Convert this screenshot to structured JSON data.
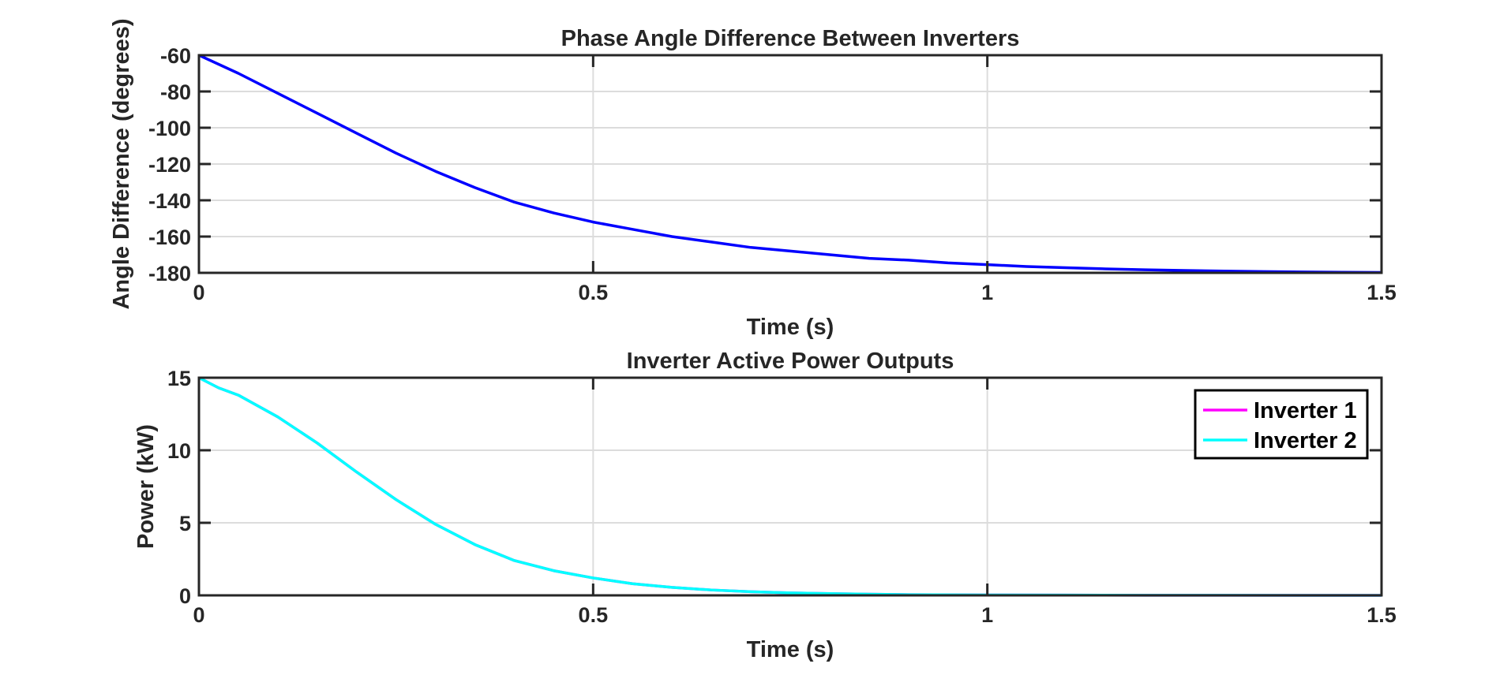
{
  "chart_data": [
    {
      "type": "line",
      "title": "Phase Angle Difference Between Inverters",
      "xlabel": "Time (s)",
      "ylabel": "Angle Difference (degrees)",
      "xlim": [
        0,
        1.5
      ],
      "ylim": [
        -180,
        -60
      ],
      "xticks": [
        0,
        0.5,
        1,
        1.5
      ],
      "xtick_labels": [
        "0",
        "0.5",
        "1",
        "1.5"
      ],
      "yticks": [
        -180,
        -160,
        -140,
        -120,
        -100,
        -80,
        -60
      ],
      "ytick_labels": [
        "-180",
        "-160",
        "-140",
        "-120",
        "-100",
        "-80",
        "-60"
      ],
      "grid": true,
      "legend": null,
      "series": [
        {
          "color": "#0000ff",
          "x": [
            0,
            0.05,
            0.1,
            0.15,
            0.2,
            0.25,
            0.3,
            0.35,
            0.4,
            0.45,
            0.5,
            0.55,
            0.6,
            0.65,
            0.7,
            0.75,
            0.8,
            0.85,
            0.9,
            0.95,
            1.0,
            1.05,
            1.1,
            1.15,
            1.2,
            1.25,
            1.3,
            1.35,
            1.4,
            1.45,
            1.5
          ],
          "y": [
            -60,
            -70,
            -81,
            -92,
            -103,
            -114,
            -124,
            -133,
            -141,
            -147,
            -152,
            -156,
            -160,
            -163,
            -166,
            -168,
            -170,
            -172,
            -173,
            -174.5,
            -175.5,
            -176.5,
            -177.2,
            -177.8,
            -178.3,
            -178.7,
            -179,
            -179.3,
            -179.5,
            -179.7,
            -179.8
          ]
        }
      ]
    },
    {
      "type": "line",
      "title": "Inverter Active Power Outputs",
      "xlabel": "Time (s)",
      "ylabel": "Power (kW)",
      "xlim": [
        0,
        1.5
      ],
      "ylim": [
        0,
        15
      ],
      "xticks": [
        0,
        0.5,
        1,
        1.5
      ],
      "xtick_labels": [
        "0",
        "0.5",
        "1",
        "1.5"
      ],
      "yticks": [
        0,
        5,
        10,
        15
      ],
      "ytick_labels": [
        "0",
        "5",
        "10",
        "15"
      ],
      "grid": true,
      "legend": "top-right",
      "series": [
        {
          "name": "Inverter 1",
          "color": "#ff00ff",
          "x": [
            0,
            0.025,
            0.05,
            0.1,
            0.15,
            0.2,
            0.25,
            0.3,
            0.35,
            0.4,
            0.45,
            0.5,
            0.55,
            0.6,
            0.65,
            0.7,
            0.75,
            0.8,
            0.85,
            0.9,
            1.0,
            1.1,
            1.2,
            1.3,
            1.4,
            1.5
          ],
          "y": [
            15,
            14.3,
            13.8,
            12.3,
            10.5,
            8.5,
            6.6,
            4.9,
            3.5,
            2.4,
            1.7,
            1.2,
            0.8,
            0.55,
            0.37,
            0.25,
            0.17,
            0.12,
            0.08,
            0.05,
            0.03,
            0.02,
            0.01,
            0.01,
            0.0,
            0.0
          ]
        },
        {
          "name": "Inverter 2",
          "color": "#00ffff",
          "x": [
            0,
            0.025,
            0.05,
            0.1,
            0.15,
            0.2,
            0.25,
            0.3,
            0.35,
            0.4,
            0.45,
            0.5,
            0.55,
            0.6,
            0.65,
            0.7,
            0.75,
            0.8,
            0.85,
            0.9,
            1.0,
            1.1,
            1.2,
            1.3,
            1.4,
            1.5
          ],
          "y": [
            15,
            14.3,
            13.8,
            12.3,
            10.5,
            8.5,
            6.6,
            4.9,
            3.5,
            2.4,
            1.7,
            1.2,
            0.8,
            0.55,
            0.37,
            0.25,
            0.17,
            0.12,
            0.08,
            0.05,
            0.03,
            0.02,
            0.01,
            0.01,
            0.0,
            0.0
          ]
        }
      ]
    }
  ]
}
